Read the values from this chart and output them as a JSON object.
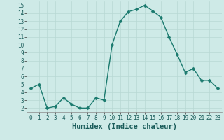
{
  "x": [
    0,
    1,
    2,
    3,
    4,
    5,
    6,
    7,
    8,
    9,
    10,
    11,
    12,
    13,
    14,
    15,
    16,
    17,
    18,
    19,
    20,
    21,
    22,
    23
  ],
  "y": [
    4.5,
    5.0,
    2.0,
    2.2,
    3.3,
    2.5,
    2.0,
    2.0,
    3.3,
    3.0,
    10.0,
    13.0,
    14.2,
    14.5,
    15.0,
    14.3,
    13.5,
    11.0,
    8.8,
    6.5,
    7.0,
    5.5,
    5.5,
    4.5
  ],
  "line_color": "#1a7a6e",
  "marker_color": "#1a7a6e",
  "bg_color": "#ceeae7",
  "grid_color": "#b8d8d4",
  "xlabel": "Humidex (Indice chaleur)",
  "ylim": [
    1.5,
    15.5
  ],
  "xlim": [
    -0.5,
    23.5
  ],
  "yticks": [
    2,
    3,
    4,
    5,
    6,
    7,
    8,
    9,
    10,
    11,
    12,
    13,
    14,
    15
  ],
  "xticks": [
    0,
    1,
    2,
    3,
    4,
    5,
    6,
    7,
    8,
    9,
    10,
    11,
    12,
    13,
    14,
    15,
    16,
    17,
    18,
    19,
    20,
    21,
    22,
    23
  ],
  "tick_fontsize": 5.5,
  "xlabel_fontsize": 7.5,
  "marker_size": 2.5,
  "line_width": 1.0
}
